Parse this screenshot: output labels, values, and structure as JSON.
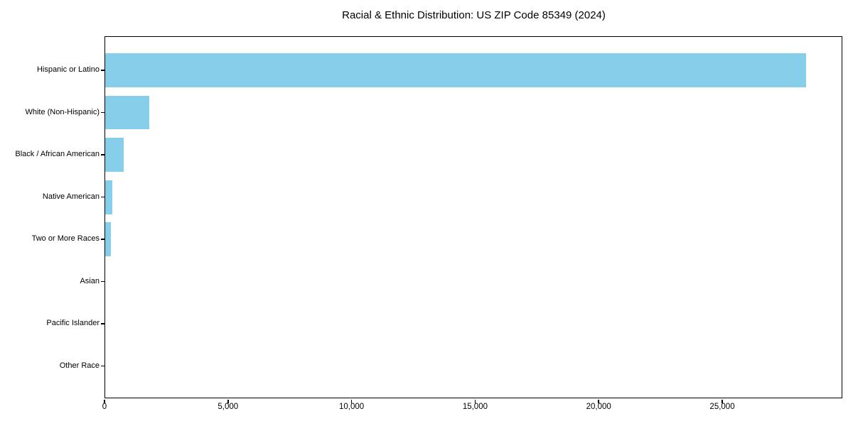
{
  "title": "Racial & Ethnic Distribution: US ZIP Code 85349 (2024)",
  "colors": {
    "bar": "#87CEEB",
    "axis": "#000000",
    "background": "#FFFFFF",
    "text": "#000000"
  },
  "chart_data": {
    "type": "bar",
    "orientation": "horizontal",
    "title": "Racial & Ethnic Distribution: US ZIP Code 85349 (2024)",
    "categories": [
      "Hispanic or Latino",
      "White (Non-Hispanic)",
      "Black / African American",
      "Native American",
      "Two or More Races",
      "Asian",
      "Pacific Islander",
      "Other Race"
    ],
    "values": [
      28450,
      1780,
      755,
      290,
      240,
      0,
      0,
      0
    ],
    "xlabel": "",
    "ylabel": "",
    "xlim": [
      0,
      29890
    ],
    "xticks": [
      0,
      5000,
      10000,
      15000,
      20000,
      25000
    ],
    "xtick_labels": [
      "0",
      "5,000",
      "10,000",
      "15,000",
      "20,000",
      "25,000"
    ],
    "bar_color": "#87CEEB",
    "grid": false,
    "legend": false,
    "categories_order": "top-to-bottom"
  }
}
